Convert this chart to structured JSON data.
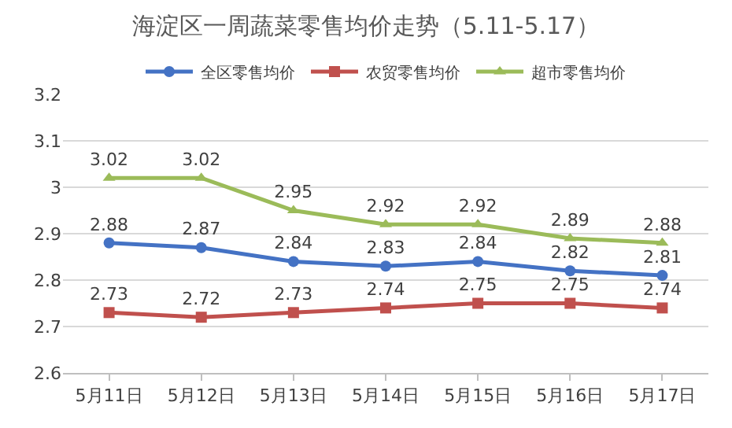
{
  "chart_data": {
    "type": "line",
    "title": "海淀区一周蔬菜零售均价走势（5.11-5.17）",
    "categories": [
      "5月11日",
      "5月12日",
      "5月13日",
      "5月14日",
      "5月15日",
      "5月16日",
      "5月17日"
    ],
    "series": [
      {
        "name": "全区零售均价",
        "color": "#4472c4",
        "marker": "circle",
        "values": [
          2.88,
          2.87,
          2.84,
          2.83,
          2.84,
          2.82,
          2.81
        ]
      },
      {
        "name": "农贸零售均价",
        "color": "#c0504d",
        "marker": "square",
        "values": [
          2.73,
          2.72,
          2.73,
          2.74,
          2.75,
          2.75,
          2.74
        ]
      },
      {
        "name": "超市零售均价",
        "color": "#9bbb59",
        "marker": "triangle",
        "values": [
          3.02,
          3.02,
          2.95,
          2.92,
          2.92,
          2.89,
          2.88
        ]
      }
    ],
    "ylim": [
      2.6,
      3.2
    ],
    "yticks": [
      2.6,
      2.7,
      2.8,
      2.9,
      3,
      3.1,
      3.2
    ],
    "grid": "y",
    "legend": "top",
    "data_labels": true
  }
}
